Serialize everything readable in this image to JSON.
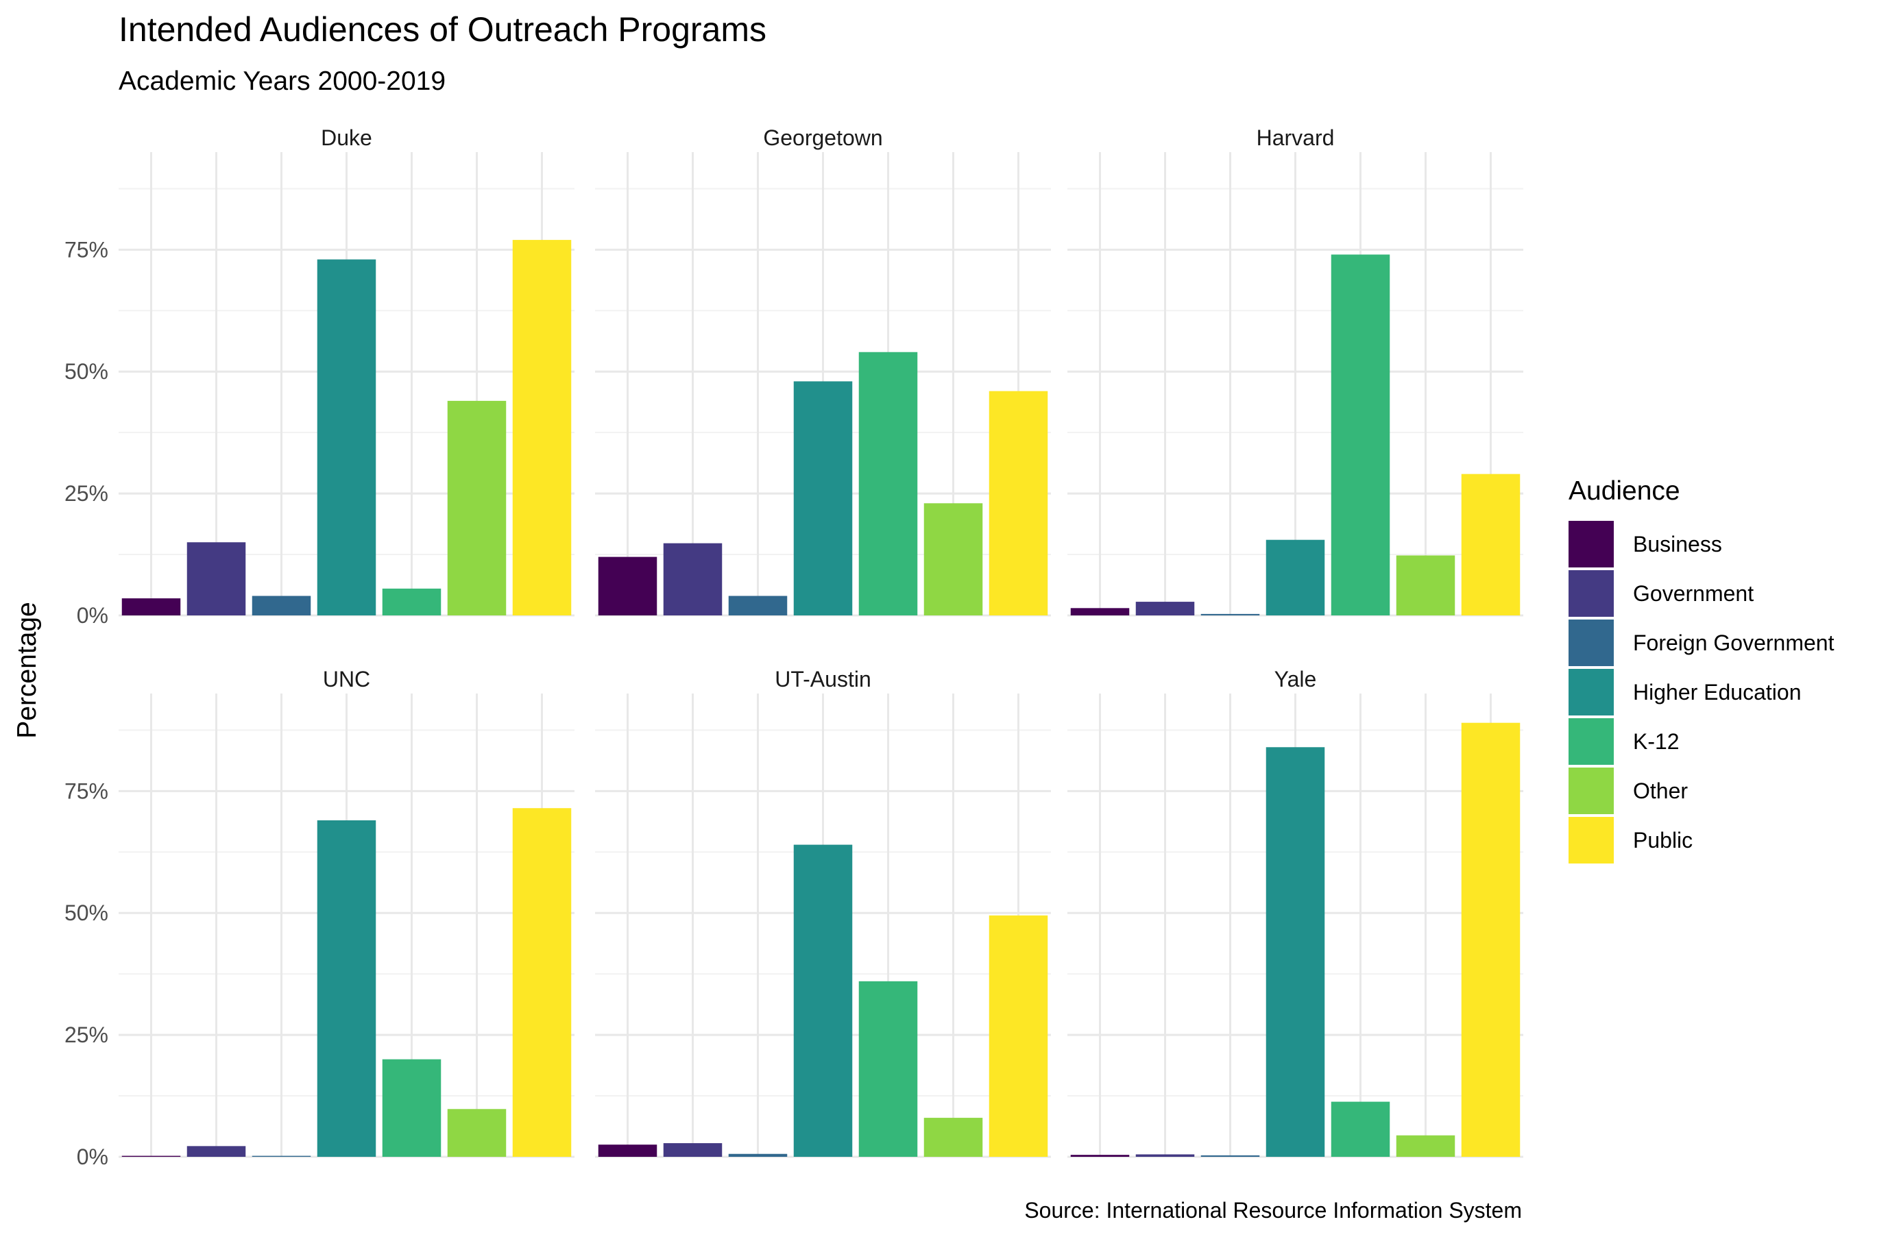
{
  "chart_data": {
    "type": "bar",
    "title": "Intended Audiences of Outreach Programs",
    "subtitle": "Academic Years 2000-2019",
    "ylabel": "Percentage",
    "xlabel": "",
    "caption": "Source: International Resource Information System",
    "ylim": [
      0,
      95
    ],
    "y_ticks": [
      0,
      25,
      50,
      75
    ],
    "y_tick_labels": [
      "0%",
      "25%",
      "50%",
      "75%"
    ],
    "grid": true,
    "legend": {
      "title": "Audience",
      "position": "right",
      "entries": [
        {
          "name": "Business",
          "color": "#440154"
        },
        {
          "name": "Government",
          "color": "#443A83"
        },
        {
          "name": "Foreign Government",
          "color": "#31688E"
        },
        {
          "name": "Higher Education",
          "color": "#21908C"
        },
        {
          "name": "K-12",
          "color": "#35B779"
        },
        {
          "name": "Other",
          "color": "#8FD744"
        },
        {
          "name": "Public",
          "color": "#FDE725"
        }
      ]
    },
    "categories": [
      "Business",
      "Government",
      "Foreign Government",
      "Higher Education",
      "K-12",
      "Other",
      "Public"
    ],
    "panels": [
      {
        "name": "Duke",
        "values": [
          3.5,
          15,
          4,
          73,
          5.5,
          44,
          77
        ]
      },
      {
        "name": "Georgetown",
        "values": [
          12,
          14.8,
          4,
          48,
          54,
          23,
          46
        ]
      },
      {
        "name": "Harvard",
        "values": [
          1.5,
          2.8,
          0.3,
          15.5,
          74,
          12.3,
          29
        ]
      },
      {
        "name": "UNC",
        "values": [
          0.2,
          2.2,
          0.2,
          69,
          20,
          9.8,
          71.5
        ]
      },
      {
        "name": "UT-Austin",
        "values": [
          2.5,
          2.8,
          0.6,
          64,
          36,
          8,
          49.5
        ]
      },
      {
        "name": "Yale",
        "values": [
          0.4,
          0.5,
          0.3,
          84,
          11.3,
          4.4,
          89
        ]
      }
    ]
  }
}
